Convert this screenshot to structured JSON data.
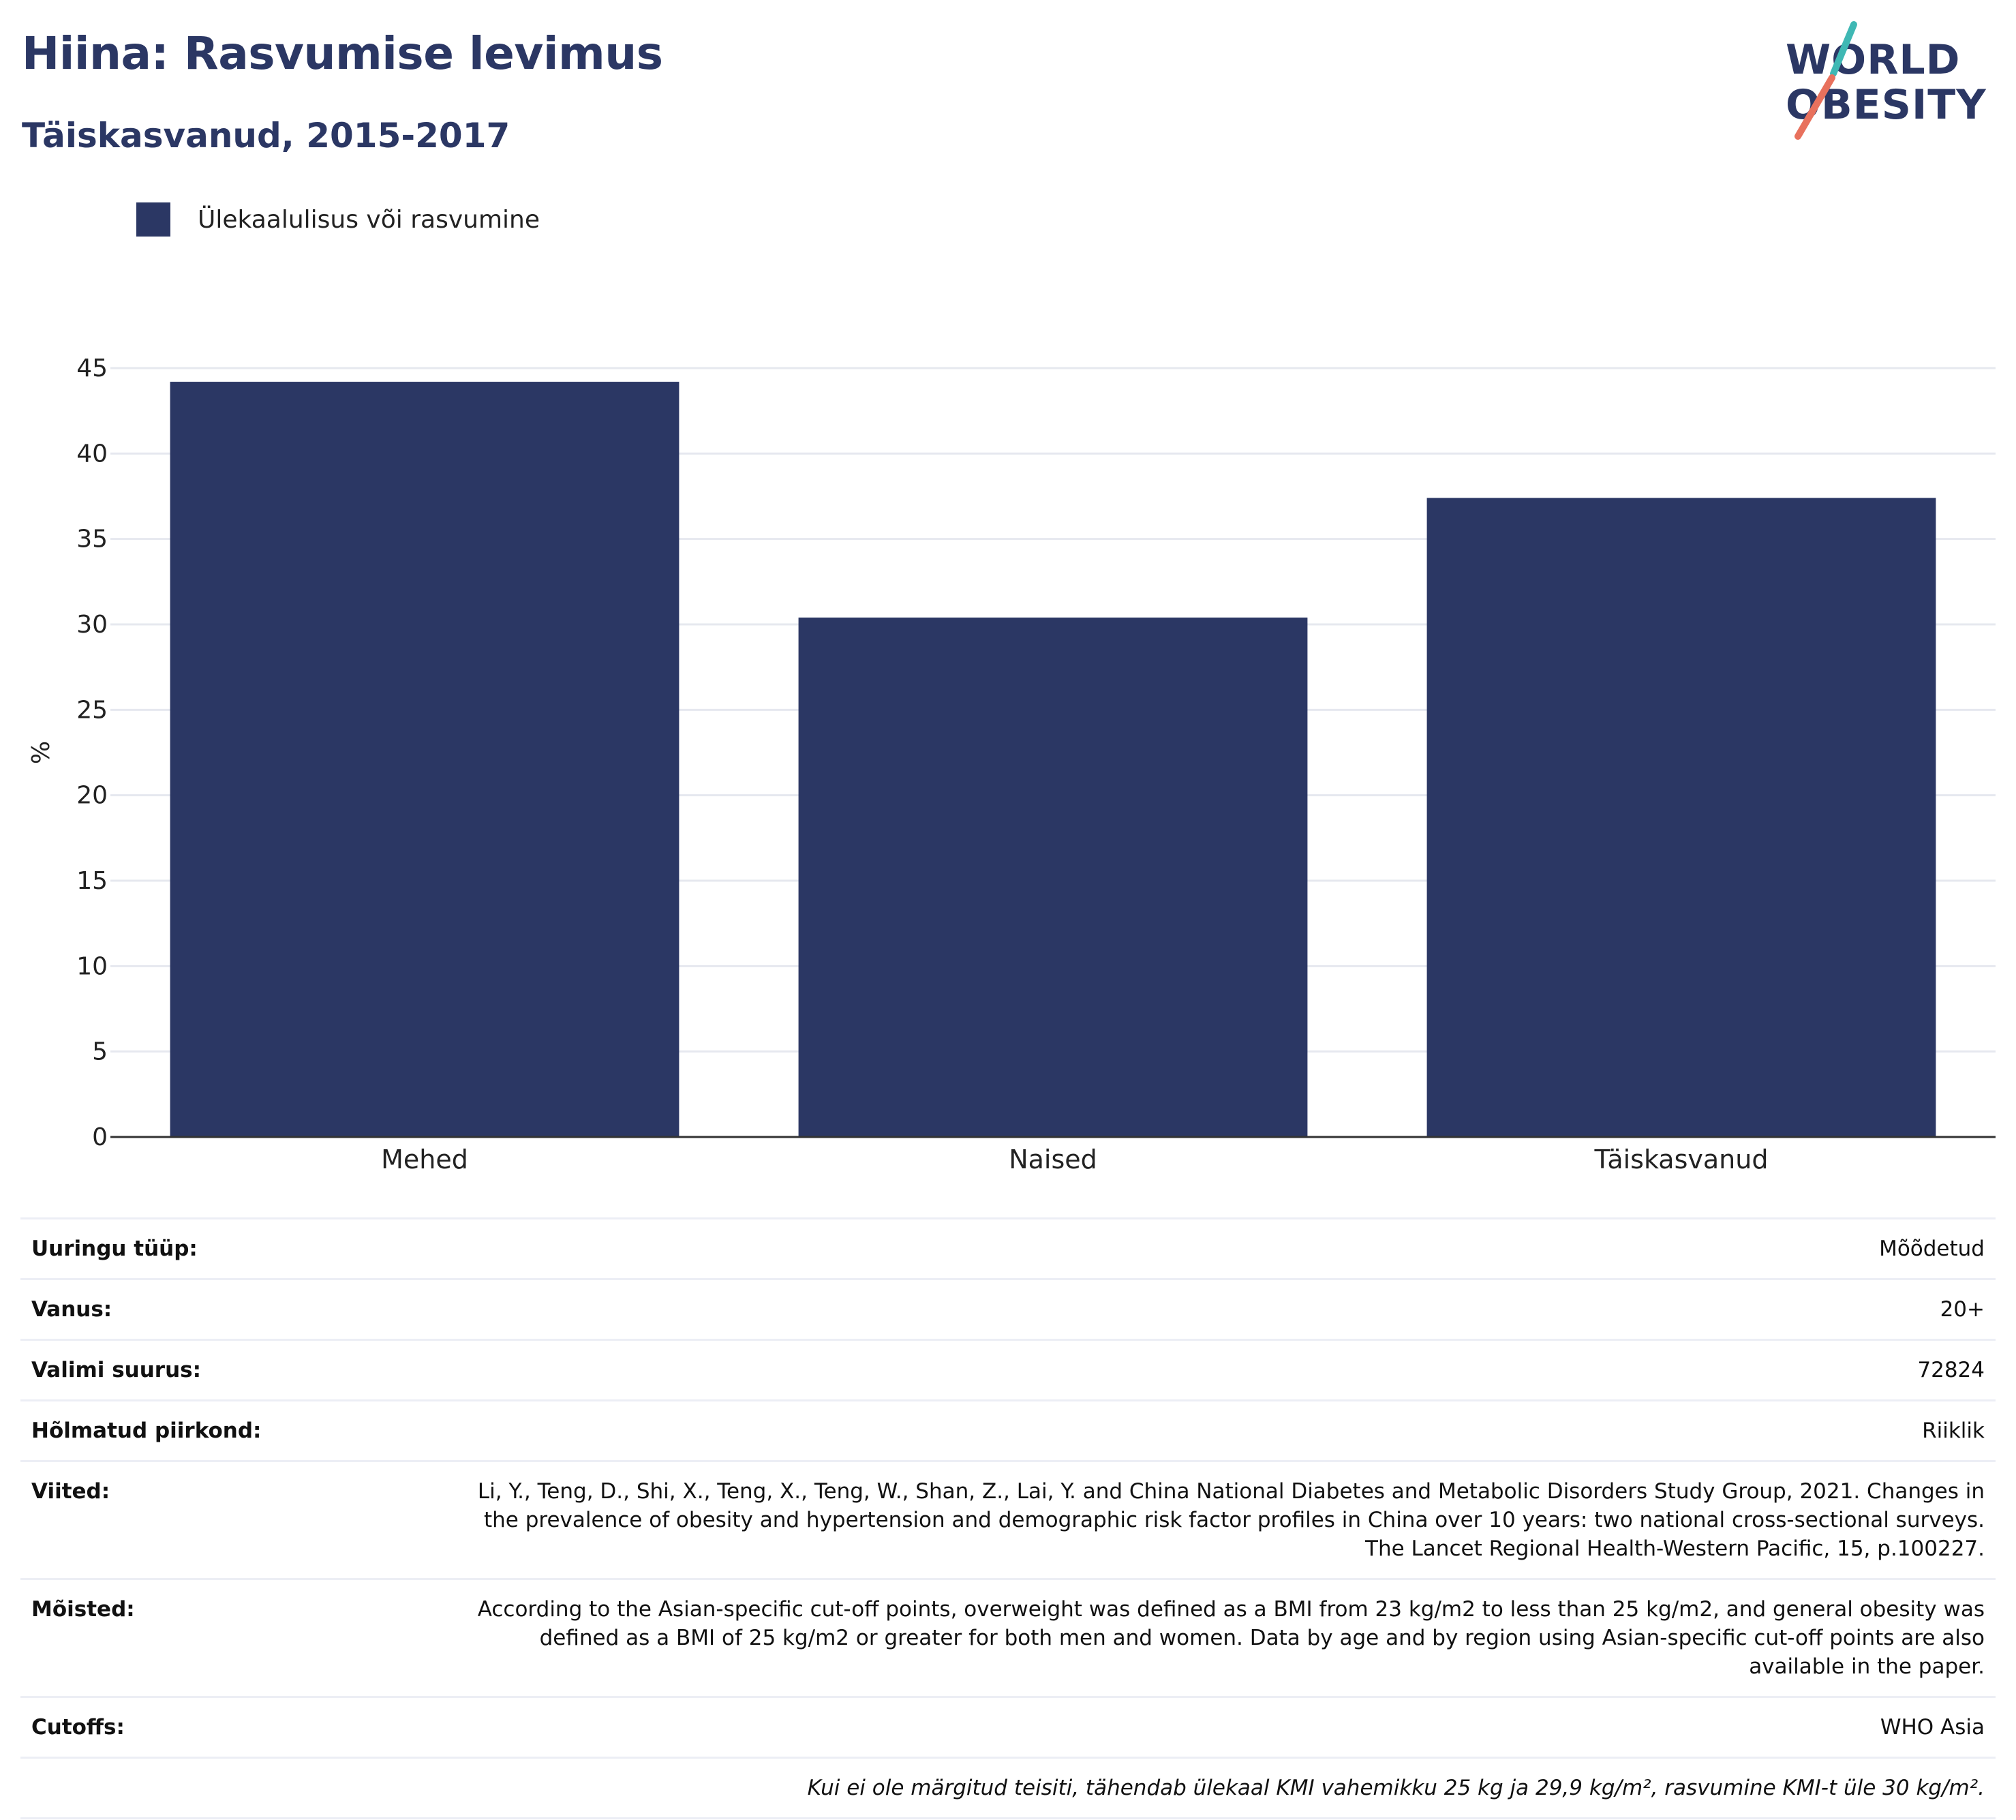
{
  "header": {
    "title": "Hiina: Rasvumise levimus",
    "subtitle": "Täiskasvanud, 2015-2017"
  },
  "logo": {
    "line1": "WORLD",
    "line2": "OBESITY",
    "colors": {
      "text": "#2b3764",
      "slash_top": "#3fb8b4",
      "slash_bottom": "#e8715d"
    }
  },
  "legend": {
    "label": "Ülekaalulisus või rasvumine"
  },
  "colors": {
    "bar": "#2b3764",
    "grid": "#e6e8ef",
    "axis": "#333333"
  },
  "chart_data": {
    "type": "bar",
    "categories": [
      "Mehed",
      "Naised",
      "Täiskasvanud"
    ],
    "series": [
      {
        "name": "Ülekaalulisus või rasvumine",
        "values": [
          44.2,
          30.4,
          37.4
        ]
      }
    ],
    "ylabel": "%",
    "ylim": [
      0,
      45
    ],
    "yticks": [
      0,
      5,
      10,
      15,
      20,
      25,
      30,
      35,
      40,
      45
    ],
    "grid": true,
    "legend_position": "top-left"
  },
  "meta": {
    "rows": [
      {
        "key": "Uuringu tüüp:",
        "value": "Mõõdetud"
      },
      {
        "key": "Vanus:",
        "value": "20+"
      },
      {
        "key": "Valimi suurus:",
        "value": "72824"
      },
      {
        "key": "Hõlmatud piirkond:",
        "value": "Riiklik"
      },
      {
        "key": "Viited:",
        "value": "Li, Y., Teng, D., Shi, X., Teng, X., Teng, W., Shan, Z., Lai, Y. and China National Diabetes and Metabolic Disorders Study Group, 2021. Changes in the prevalence of obesity and hypertension and demographic risk factor profiles in China over 10 years: two national cross-sectional surveys. The Lancet Regional Health-Western Pacific, 15, p.100227."
      },
      {
        "key": "Mõisted:",
        "value": "According to the Asian-specific cut-off points, overweight was defined as a BMI from 23 kg/m2 to less than 25 kg/m2, and general obesity was defined as a BMI of 25 kg/m2 or greater for both men and women. Data by age and by region using Asian-specific cut-off points are also available in the paper."
      },
      {
        "key": "Cutoffs:",
        "value": "WHO Asia"
      }
    ],
    "footnote": "Kui ei ole märgitud teisiti, tähendab ülekaal KMI vahemikku 25 kg ja 29,9 kg/m², rasvumine KMI-t üle 30 kg/m²."
  }
}
